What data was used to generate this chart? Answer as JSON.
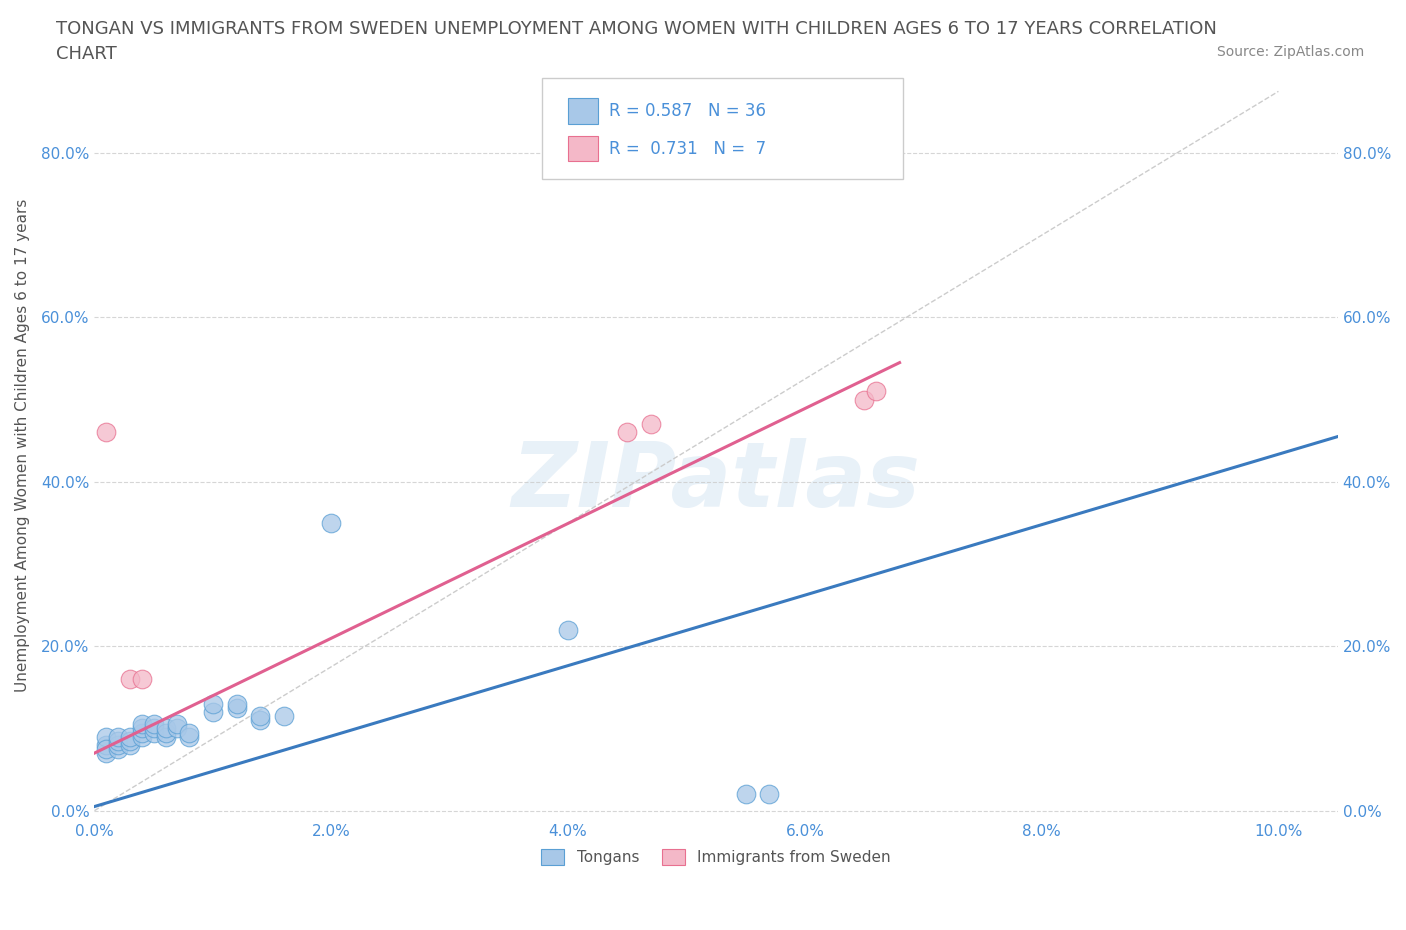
{
  "title_line1": "TONGAN VS IMMIGRANTS FROM SWEDEN UNEMPLOYMENT AMONG WOMEN WITH CHILDREN AGES 6 TO 17 YEARS CORRELATION",
  "title_line2": "CHART",
  "source": "Source: ZipAtlas.com",
  "ylabel": "Unemployment Among Women with Children Ages 6 to 17 years",
  "watermark": "ZIPatlas",
  "r_tongan": 0.587,
  "n_tongan": 36,
  "r_sweden": 0.731,
  "n_sweden": 7,
  "xlim": [
    0.0,
    0.105
  ],
  "ylim": [
    -0.01,
    0.9
  ],
  "xticks": [
    0.0,
    0.02,
    0.04,
    0.06,
    0.08,
    0.1
  ],
  "yticks": [
    0.0,
    0.2,
    0.4,
    0.6,
    0.8
  ],
  "blue_fill": "#a8c8e8",
  "blue_edge": "#5a9fd4",
  "pink_fill": "#f4b8c8",
  "pink_edge": "#e87090",
  "blue_line_color": "#3a7abf",
  "pink_line_color": "#e06090",
  "blue_scatter": [
    [
      0.001,
      0.07
    ],
    [
      0.001,
      0.08
    ],
    [
      0.001,
      0.09
    ],
    [
      0.001,
      0.075
    ],
    [
      0.002,
      0.075
    ],
    [
      0.002,
      0.08
    ],
    [
      0.002,
      0.085
    ],
    [
      0.002,
      0.09
    ],
    [
      0.003,
      0.08
    ],
    [
      0.003,
      0.085
    ],
    [
      0.003,
      0.09
    ],
    [
      0.004,
      0.09
    ],
    [
      0.004,
      0.095
    ],
    [
      0.004,
      0.1
    ],
    [
      0.004,
      0.105
    ],
    [
      0.005,
      0.095
    ],
    [
      0.005,
      0.1
    ],
    [
      0.005,
      0.105
    ],
    [
      0.006,
      0.09
    ],
    [
      0.006,
      0.095
    ],
    [
      0.006,
      0.1
    ],
    [
      0.007,
      0.1
    ],
    [
      0.007,
      0.105
    ],
    [
      0.008,
      0.09
    ],
    [
      0.008,
      0.095
    ],
    [
      0.01,
      0.12
    ],
    [
      0.01,
      0.13
    ],
    [
      0.012,
      0.125
    ],
    [
      0.012,
      0.13
    ],
    [
      0.014,
      0.11
    ],
    [
      0.014,
      0.115
    ],
    [
      0.016,
      0.115
    ],
    [
      0.02,
      0.35
    ],
    [
      0.04,
      0.22
    ],
    [
      0.055,
      0.02
    ],
    [
      0.057,
      0.02
    ]
  ],
  "pink_scatter": [
    [
      0.001,
      0.46
    ],
    [
      0.003,
      0.16
    ],
    [
      0.004,
      0.16
    ],
    [
      0.045,
      0.46
    ],
    [
      0.047,
      0.47
    ],
    [
      0.065,
      0.5
    ],
    [
      0.066,
      0.51
    ]
  ],
  "blue_line_x": [
    0.0,
    0.105
  ],
  "blue_line_y": [
    0.005,
    0.455
  ],
  "pink_line_x": [
    0.0,
    0.068
  ],
  "pink_line_y": [
    0.07,
    0.545
  ],
  "ref_line_x": [
    0.0,
    0.1
  ],
  "ref_line_y": [
    0.0,
    0.875
  ],
  "grid_color": "#cccccc",
  "bg_color": "#ffffff",
  "legend_label1": "Tongans",
  "legend_label2": "Immigrants from Sweden",
  "title_color": "#555555",
  "title_fontsize": 13,
  "ylabel_color": "#555555",
  "tick_color": "#4a90d9",
  "source_color": "#888888",
  "scatter_size": 180
}
